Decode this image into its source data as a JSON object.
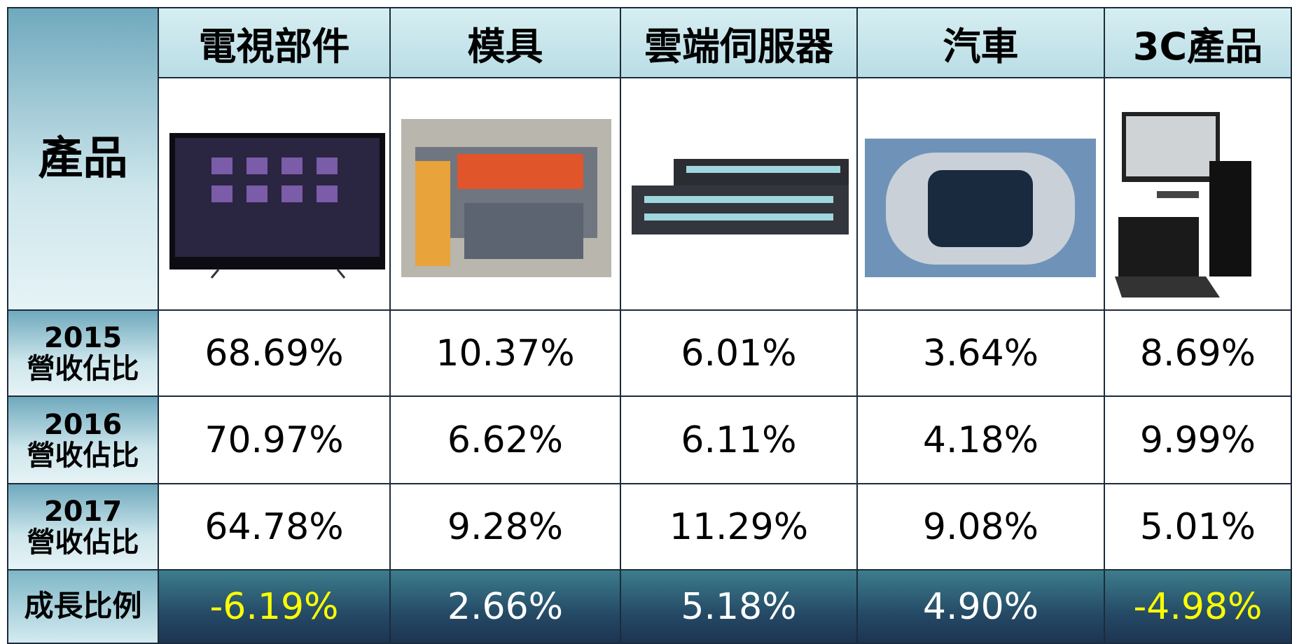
{
  "table": {
    "corner": "產品",
    "columns": [
      "電視部件",
      "模具",
      "雲端伺服器",
      "汽車",
      "3C產品"
    ],
    "rows": [
      {
        "label": [
          "2015",
          "營收佔比"
        ],
        "cells": [
          "68.69%",
          "10.37%",
          "6.01%",
          "3.64%",
          "8.69%"
        ]
      },
      {
        "label": [
          "2016",
          "營收佔比"
        ],
        "cells": [
          "70.97%",
          "6.62%",
          "6.11%",
          "4.18%",
          "9.99%"
        ]
      },
      {
        "label": [
          "2017",
          "營收佔比"
        ],
        "cells": [
          "64.78%",
          "9.28%",
          "11.29%",
          "9.08%",
          "5.01%"
        ]
      },
      {
        "label": [
          "成長比例"
        ],
        "cells": [
          "-6.19%",
          "2.66%",
          "5.18%",
          "4.90%",
          "-4.98%"
        ]
      }
    ]
  }
}
